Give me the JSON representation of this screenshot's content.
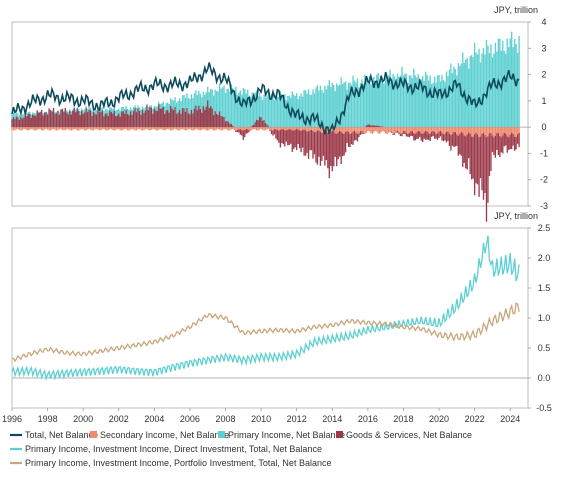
{
  "chart_data": [
    {
      "type": "bar",
      "panel": "top",
      "unit_label": "JPY, trillion",
      "ylim": [
        -3,
        4
      ],
      "yticks": [
        -3,
        -2,
        -1,
        0,
        1,
        2,
        3,
        4
      ],
      "xlim": [
        1996,
        2025
      ],
      "grid": false,
      "series": [
        {
          "name": "Total, Net Balance",
          "kind": "line",
          "color": "#0d4a5c",
          "points": [
            [
              1996,
              0.5
            ],
            [
              1997,
              0.9
            ],
            [
              1998,
              1.2
            ],
            [
              1999,
              1.1
            ],
            [
              2000,
              1.0
            ],
            [
              2001,
              0.8
            ],
            [
              2002,
              1.1
            ],
            [
              2003,
              1.4
            ],
            [
              2004,
              1.6
            ],
            [
              2005,
              1.6
            ],
            [
              2006,
              1.7
            ],
            [
              2007,
              2.2
            ],
            [
              2008,
              1.8
            ],
            [
              2009,
              0.8
            ],
            [
              2010,
              1.4
            ],
            [
              2011,
              1.2
            ],
            [
              2012,
              0.4
            ],
            [
              2013,
              0.3
            ],
            [
              2014,
              -0.2
            ],
            [
              2015,
              1.2
            ],
            [
              2016,
              1.7
            ],
            [
              2017,
              1.8
            ],
            [
              2018,
              1.6
            ],
            [
              2019,
              1.5
            ],
            [
              2020,
              1.2
            ],
            [
              2021,
              1.6
            ],
            [
              2022,
              0.8
            ],
            [
              2023,
              1.6
            ],
            [
              2024,
              1.9
            ],
            [
              2024.5,
              1.8
            ]
          ]
        },
        {
          "name": "Secondary Income, Net Balance",
          "kind": "bar",
          "color": "#f08a6c",
          "points": [
            [
              1996,
              -0.1
            ],
            [
              1998,
              -0.1
            ],
            [
              2000,
              -0.1
            ],
            [
              2002,
              -0.1
            ],
            [
              2004,
              -0.1
            ],
            [
              2006,
              -0.1
            ],
            [
              2008,
              -0.1
            ],
            [
              2010,
              -0.1
            ],
            [
              2012,
              -0.1
            ],
            [
              2014,
              -0.2
            ],
            [
              2016,
              -0.2
            ],
            [
              2018,
              -0.2
            ],
            [
              2020,
              -0.2
            ],
            [
              2022,
              -0.3
            ],
            [
              2024,
              -0.3
            ]
          ]
        },
        {
          "name": "Primary Income, Net Balance",
          "kind": "bar",
          "color": "#5fd0d2",
          "points": [
            [
              1996,
              0.5
            ],
            [
              1998,
              0.6
            ],
            [
              2000,
              0.7
            ],
            [
              2002,
              0.7
            ],
            [
              2004,
              0.8
            ],
            [
              2006,
              1.2
            ],
            [
              2008,
              1.5
            ],
            [
              2010,
              1.2
            ],
            [
              2012,
              1.2
            ],
            [
              2014,
              1.6
            ],
            [
              2016,
              1.8
            ],
            [
              2018,
              2.0
            ],
            [
              2020,
              1.8
            ],
            [
              2022,
              2.8
            ],
            [
              2023,
              3.0
            ],
            [
              2024,
              3.2
            ],
            [
              2024.5,
              3.3
            ]
          ]
        },
        {
          "name": "Goods & Services, Net Balance",
          "kind": "bar",
          "color": "#9c3a4a",
          "points": [
            [
              1996,
              0.3
            ],
            [
              1998,
              0.6
            ],
            [
              2000,
              0.6
            ],
            [
              2002,
              0.5
            ],
            [
              2004,
              0.7
            ],
            [
              2006,
              0.6
            ],
            [
              2007,
              0.8
            ],
            [
              2008,
              0.3
            ],
            [
              2009,
              -0.3
            ],
            [
              2010,
              0.4
            ],
            [
              2011,
              -0.5
            ],
            [
              2012,
              -0.7
            ],
            [
              2013,
              -1.0
            ],
            [
              2014,
              -1.4
            ],
            [
              2015,
              -0.5
            ],
            [
              2016,
              0.1
            ],
            [
              2017,
              0.0
            ],
            [
              2018,
              -0.1
            ],
            [
              2019,
              -0.3
            ],
            [
              2020,
              -0.2
            ],
            [
              2021,
              -0.6
            ],
            [
              2022,
              -1.8
            ],
            [
              2022.7,
              -2.6
            ],
            [
              2023,
              -0.8
            ],
            [
              2024,
              -0.5
            ]
          ]
        }
      ]
    },
    {
      "type": "line",
      "panel": "bottom",
      "unit_label": "JPY, trillion",
      "ylim": [
        -0.5,
        2.5
      ],
      "yticks": [
        -0.5,
        0.0,
        0.5,
        1.0,
        1.5,
        2.0,
        2.5
      ],
      "ytick_labels": [
        "-0.5",
        "0.0",
        "0.5",
        "1.0",
        "1.5",
        "2.0",
        "2.5"
      ],
      "xlim": [
        1996,
        2025
      ],
      "xticks": [
        1996,
        1998,
        2000,
        2002,
        2004,
        2006,
        2008,
        2010,
        2012,
        2014,
        2016,
        2018,
        2020,
        2022,
        2024
      ],
      "grid": false,
      "series": [
        {
          "name": "Primary Income, Investment Income, Direct Investment, Total, Net Balance",
          "color": "#5fd0d2",
          "points": [
            [
              1996,
              0.1
            ],
            [
              1997,
              0.12
            ],
            [
              1998,
              0.05
            ],
            [
              1999,
              0.08
            ],
            [
              2000,
              0.1
            ],
            [
              2001,
              0.12
            ],
            [
              2002,
              0.15
            ],
            [
              2003,
              0.12
            ],
            [
              2004,
              0.1
            ],
            [
              2005,
              0.18
            ],
            [
              2006,
              0.25
            ],
            [
              2007,
              0.3
            ],
            [
              2008,
              0.35
            ],
            [
              2009,
              0.3
            ],
            [
              2010,
              0.35
            ],
            [
              2011,
              0.35
            ],
            [
              2012,
              0.4
            ],
            [
              2013,
              0.6
            ],
            [
              2014,
              0.65
            ],
            [
              2015,
              0.7
            ],
            [
              2016,
              0.8
            ],
            [
              2017,
              0.85
            ],
            [
              2018,
              0.9
            ],
            [
              2019,
              0.95
            ],
            [
              2020,
              0.9
            ],
            [
              2021,
              1.2
            ],
            [
              2022,
              1.6
            ],
            [
              2022.7,
              2.3
            ],
            [
              2023,
              1.8
            ],
            [
              2024,
              1.9
            ],
            [
              2024.5,
              1.7
            ]
          ]
        },
        {
          "name": "Primary Income, Investment Income, Portfolio Investment, Total, Net Balance",
          "color": "#c9a67a",
          "points": [
            [
              1996,
              0.3
            ],
            [
              1997,
              0.4
            ],
            [
              1998,
              0.48
            ],
            [
              1999,
              0.42
            ],
            [
              2000,
              0.4
            ],
            [
              2001,
              0.45
            ],
            [
              2002,
              0.5
            ],
            [
              2003,
              0.55
            ],
            [
              2004,
              0.6
            ],
            [
              2005,
              0.7
            ],
            [
              2006,
              0.85
            ],
            [
              2007,
              1.05
            ],
            [
              2008,
              1.0
            ],
            [
              2009,
              0.75
            ],
            [
              2010,
              0.78
            ],
            [
              2011,
              0.8
            ],
            [
              2012,
              0.78
            ],
            [
              2013,
              0.85
            ],
            [
              2014,
              0.88
            ],
            [
              2015,
              0.95
            ],
            [
              2016,
              0.92
            ],
            [
              2017,
              0.9
            ],
            [
              2018,
              0.85
            ],
            [
              2019,
              0.82
            ],
            [
              2020,
              0.72
            ],
            [
              2021,
              0.68
            ],
            [
              2022,
              0.72
            ],
            [
              2023,
              0.95
            ],
            [
              2024,
              1.1
            ],
            [
              2024.5,
              1.2
            ]
          ]
        }
      ]
    }
  ]
}
